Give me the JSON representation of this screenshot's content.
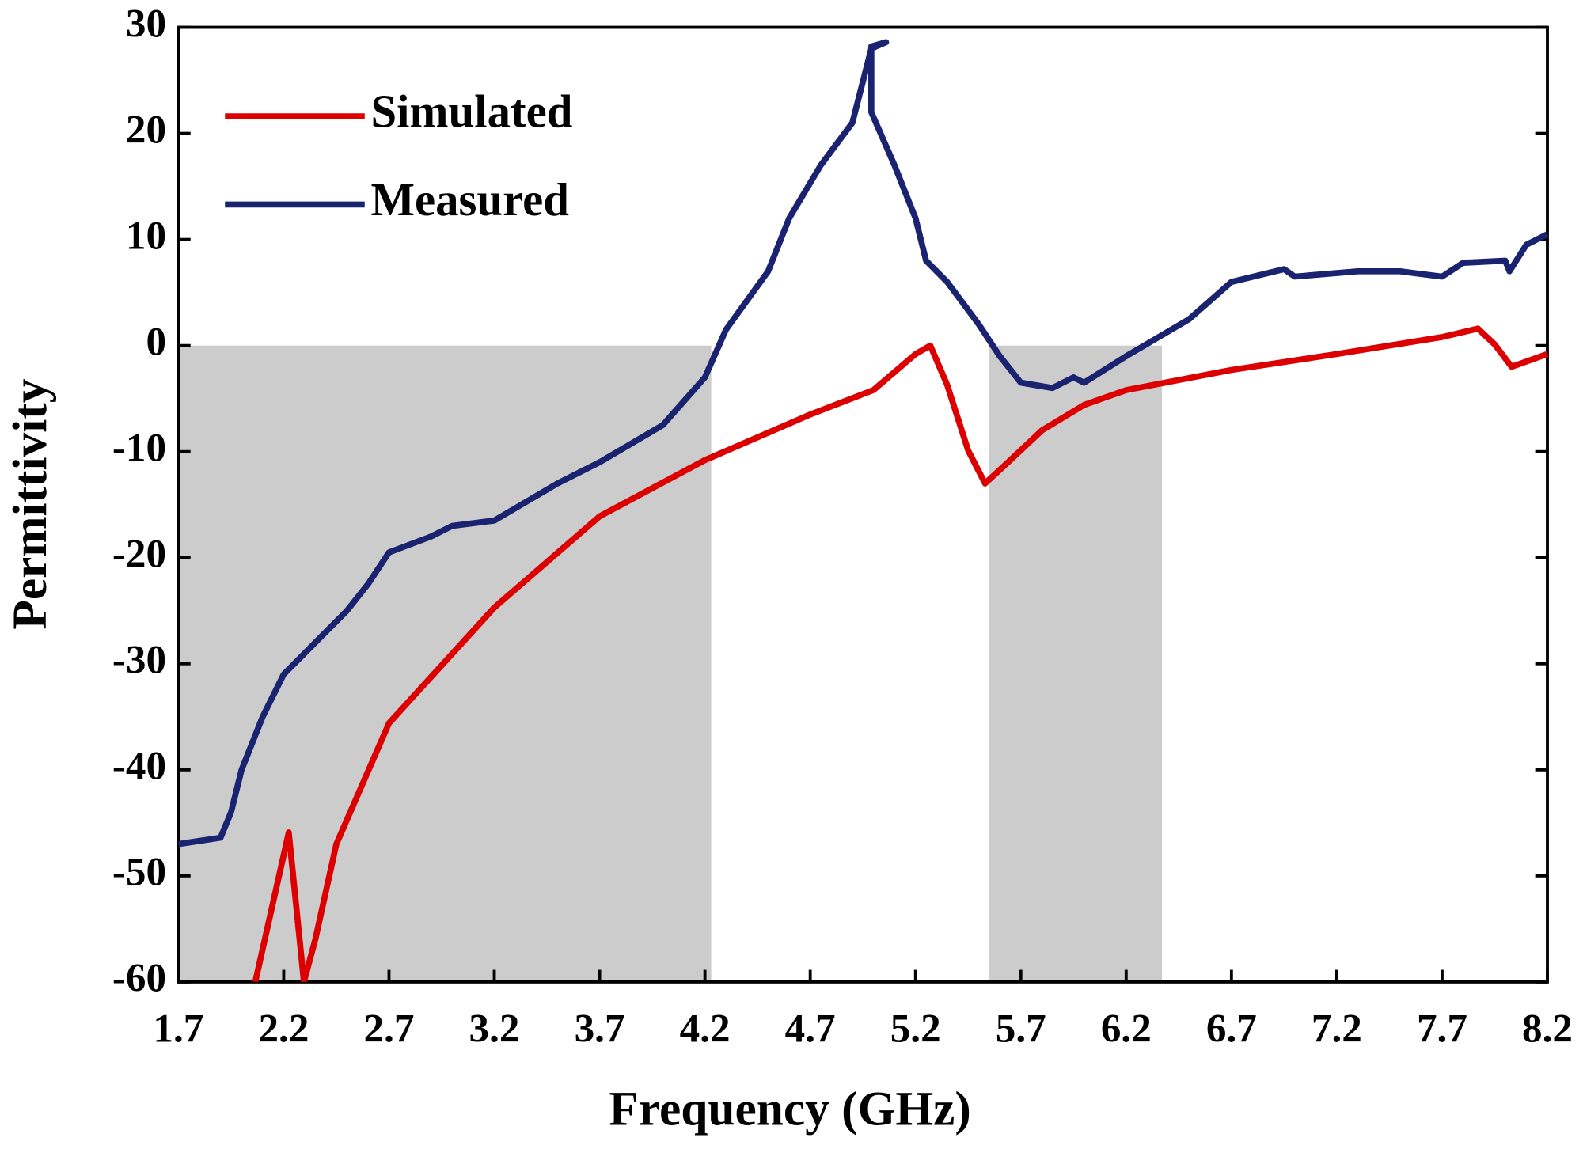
{
  "chart_data": {
    "type": "line",
    "xlabel": "Frequency (GHz)",
    "ylabel": "Permittivity",
    "xlim": [
      1.7,
      8.2
    ],
    "xticks": [
      1.7,
      2.2,
      2.7,
      3.2,
      3.7,
      4.2,
      4.7,
      5.2,
      5.7,
      6.2,
      6.7,
      7.2,
      7.7,
      8.2
    ],
    "ylim": [
      -60,
      30
    ],
    "yticks": [
      -60,
      -50,
      -40,
      -30,
      -20,
      -10,
      0,
      10,
      20,
      30
    ],
    "grid": false,
    "legend": "upper left",
    "shaded_regions": [
      {
        "color": "#cccccc",
        "x": [
          1.7,
          4.23
        ],
        "y": [
          -60,
          0
        ]
      },
      {
        "color": "#cccccc",
        "x": [
          5.55,
          6.37
        ],
        "y": [
          -60,
          0
        ]
      }
    ],
    "series": [
      {
        "name": "Simulated",
        "color": "#dd0000",
        "x": [
          2.065,
          2.224,
          2.296,
          2.35,
          2.45,
          2.7,
          3.2,
          3.7,
          4.2,
          4.7,
          5.0,
          5.2,
          5.27,
          5.35,
          5.45,
          5.53,
          5.65,
          5.8,
          6.0,
          6.2,
          6.7,
          7.2,
          7.7,
          7.87,
          7.95,
          8.03,
          8.2
        ],
        "values": [
          -60,
          -45.9,
          -60,
          -56,
          -47,
          -35.6,
          -24.7,
          -16.1,
          -10.8,
          -6.5,
          -4.2,
          -0.8,
          0,
          -3.7,
          -9.9,
          -13,
          -10.8,
          -8,
          -5.6,
          -4.2,
          -2.3,
          -0.8,
          0.8,
          1.6,
          0.1,
          -2.0,
          -0.8
        ]
      },
      {
        "name": "Measured",
        "color": "#1a2370",
        "x": [
          1.7,
          1.9,
          1.95,
          2.0,
          2.1,
          2.2,
          2.3,
          2.4,
          2.5,
          2.6,
          2.7,
          2.9,
          3.0,
          3.2,
          3.5,
          3.7,
          4.0,
          4.2,
          4.3,
          4.5,
          4.6,
          4.75,
          4.9,
          4.99,
          5.06,
          4.99,
          4.99,
          5.1,
          5.2,
          5.25,
          5.35,
          5.5,
          5.6,
          5.7,
          5.85,
          5.95,
          6.0,
          6.2,
          6.5,
          6.7,
          6.95,
          7.0,
          7.3,
          7.5,
          7.7,
          7.8,
          8.0,
          8.02,
          8.1,
          8.2
        ],
        "values": [
          -47,
          -46.4,
          -44,
          -40,
          -35,
          -31,
          -29,
          -27,
          -25,
          -22.5,
          -19.5,
          -18,
          -17,
          -16.5,
          -13,
          -11,
          -7.5,
          -3,
          1.5,
          7,
          12,
          17,
          21,
          28,
          28.6,
          28.2,
          22,
          17,
          12,
          8,
          6,
          2,
          -1,
          -3.5,
          -4,
          -3,
          -3.5,
          -1,
          2.5,
          6,
          7.2,
          6.5,
          7,
          7,
          6.5,
          7.8,
          8,
          7,
          9.5,
          10.5
        ]
      }
    ]
  }
}
